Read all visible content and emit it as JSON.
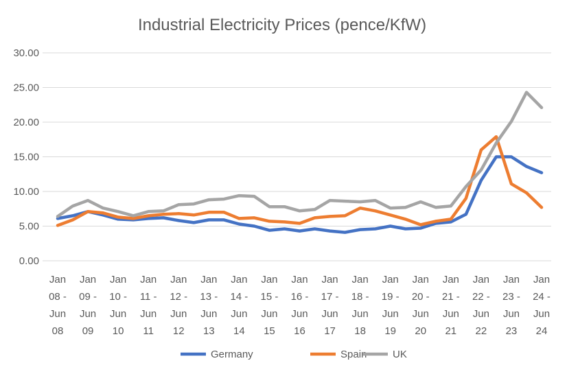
{
  "chart_data": {
    "type": "line",
    "title": "Industrial Electricity Prices (pence/KfW)",
    "xlabel": "",
    "ylabel": "",
    "ylim": [
      0,
      30
    ],
    "yticks": [
      "0.00",
      "5.00",
      "10.00",
      "15.00",
      "20.00",
      "25.00",
      "30.00"
    ],
    "grid": true,
    "legend_position": "bottom",
    "x_tick_labels": [
      [
        "Jan",
        "08 -",
        "Jun",
        "08"
      ],
      [
        "Jan",
        "09 -",
        "Jun",
        "09"
      ],
      [
        "Jan",
        "10 -",
        "Jun",
        "10"
      ],
      [
        "Jan",
        "11 -",
        "Jun",
        "11"
      ],
      [
        "Jan",
        "12 -",
        "Jun",
        "12"
      ],
      [
        "Jan",
        "13 -",
        "Jun",
        "13"
      ],
      [
        "Jan",
        "14 -",
        "Jun",
        "14"
      ],
      [
        "Jan",
        "15 -",
        "Jun",
        "15"
      ],
      [
        "Jan",
        "16 -",
        "Jun",
        "16"
      ],
      [
        "Jan",
        "17 -",
        "Jun",
        "17"
      ],
      [
        "Jan",
        "18 -",
        "Jun",
        "18"
      ],
      [
        "Jan",
        "19 -",
        "Jun",
        "19"
      ],
      [
        "Jan",
        "20 -",
        "Jun",
        "20"
      ],
      [
        "Jan",
        "21 -",
        "Jun",
        "21"
      ],
      [
        "Jan",
        "22 -",
        "Jun",
        "22"
      ],
      [
        "Jan",
        "23 -",
        "Jun",
        "23"
      ],
      [
        "Jan",
        "24 -",
        "Jun",
        "24"
      ]
    ],
    "x_points_per_label": 2,
    "series": [
      {
        "name": "Germany",
        "color": "#4472C4",
        "values": [
          6.1,
          6.5,
          7.1,
          6.6,
          6.0,
          5.9,
          6.1,
          6.2,
          5.8,
          5.5,
          5.9,
          5.9,
          5.3,
          5.0,
          4.4,
          4.6,
          4.3,
          4.6,
          4.3,
          4.1,
          4.5,
          4.6,
          5.0,
          4.6,
          4.7,
          5.4,
          5.6,
          6.7,
          11.6,
          15.0,
          15.0,
          13.6,
          12.7
        ]
      },
      {
        "name": "Spain",
        "color": "#ED7D31",
        "values": [
          5.1,
          5.9,
          7.1,
          6.9,
          6.3,
          6.1,
          6.5,
          6.7,
          6.8,
          6.6,
          7.0,
          7.0,
          6.1,
          6.2,
          5.7,
          5.6,
          5.4,
          6.2,
          6.4,
          6.5,
          7.6,
          7.2,
          6.6,
          6.0,
          5.2,
          5.7,
          6.0,
          9.0,
          16.0,
          17.9,
          11.1,
          9.8,
          7.7
        ]
      },
      {
        "name": "UK",
        "color": "#A5A5A5",
        "values": [
          6.4,
          7.9,
          8.7,
          7.6,
          7.1,
          6.5,
          7.1,
          7.2,
          8.1,
          8.2,
          8.8,
          8.9,
          9.4,
          9.3,
          7.8,
          7.8,
          7.2,
          7.4,
          8.7,
          8.6,
          8.5,
          8.7,
          7.6,
          7.7,
          8.5,
          7.7,
          7.9,
          10.7,
          13.1,
          17.0,
          20.1,
          24.3,
          22.1
        ]
      }
    ]
  }
}
